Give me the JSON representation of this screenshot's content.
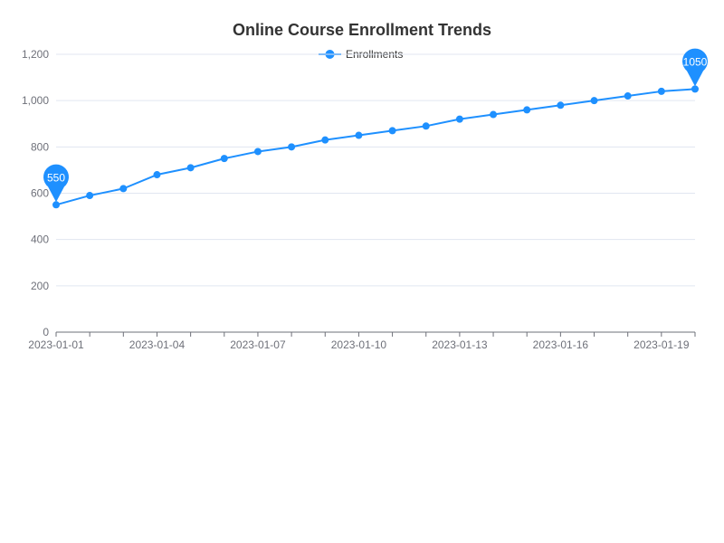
{
  "chart_data": {
    "type": "line",
    "title": "Online Course Enrollment Trends",
    "xlabel": "",
    "ylabel": "",
    "x": [
      "2023-01-01",
      "2023-01-02",
      "2023-01-03",
      "2023-01-04",
      "2023-01-05",
      "2023-01-06",
      "2023-01-07",
      "2023-01-08",
      "2023-01-09",
      "2023-01-10",
      "2023-01-11",
      "2023-01-12",
      "2023-01-13",
      "2023-01-14",
      "2023-01-15",
      "2023-01-16",
      "2023-01-17",
      "2023-01-18",
      "2023-01-19",
      "2023-01-20"
    ],
    "x_tick_labels": [
      "2023-01-01",
      "2023-01-04",
      "2023-01-07",
      "2023-01-10",
      "2023-01-13",
      "2023-01-16",
      "2023-01-19"
    ],
    "y_tick_labels": [
      "0",
      "200",
      "400",
      "600",
      "800",
      "1,000",
      "1,200"
    ],
    "ylim": [
      0,
      1200
    ],
    "grid": true,
    "legend_position": "top-center",
    "series": [
      {
        "name": "Enrollments",
        "color": "#1e90ff",
        "values": [
          550,
          590,
          620,
          680,
          710,
          750,
          780,
          800,
          830,
          850,
          870,
          890,
          920,
          940,
          960,
          980,
          1000,
          1020,
          1040,
          1050
        ]
      }
    ],
    "markers": {
      "min_label": "550",
      "max_label": "1050"
    }
  }
}
